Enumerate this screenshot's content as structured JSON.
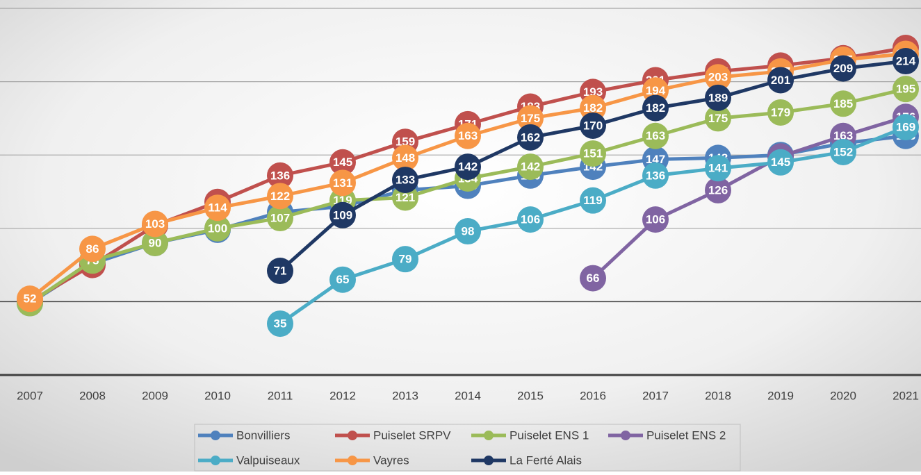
{
  "chart_data": {
    "type": "line",
    "categories": [
      "2007",
      "2008",
      "2009",
      "2010",
      "2011",
      "2012",
      "2013",
      "2014",
      "2015",
      "2016",
      "2017",
      "2018",
      "2019",
      "2020",
      "2021"
    ],
    "series": [
      {
        "name": "Bonvilliers",
        "color": "#4f81bd",
        "values": [
          49,
          76,
          90,
          99,
          111,
          115,
          126,
          129,
          136,
          142,
          147,
          148,
          150,
          158,
          163
        ]
      },
      {
        "name": "Puiselet SRPV",
        "color": "#c0504d",
        "values": [
          50,
          75,
          102,
          118,
          136,
          145,
          159,
          171,
          183,
          193,
          201,
          207,
          211,
          216,
          223
        ]
      },
      {
        "name": "Puiselet ENS 1",
        "color": "#9bbb59",
        "values": [
          49,
          78,
          90,
          100,
          107,
          119,
          121,
          134,
          142,
          151,
          163,
          175,
          179,
          185,
          195
        ]
      },
      {
        "name": "Puiselet ENS 2",
        "color": "#8064a2",
        "values": [
          null,
          null,
          null,
          null,
          null,
          null,
          null,
          null,
          null,
          66,
          106,
          126,
          149,
          163,
          176
        ]
      },
      {
        "name": "Valpuiseaux",
        "color": "#4bacc6",
        "values": [
          null,
          null,
          null,
          null,
          35,
          65,
          79,
          98,
          106,
          119,
          136,
          141,
          145,
          152,
          169
        ]
      },
      {
        "name": "Vayres",
        "color": "#f79646",
        "values": [
          52,
          86,
          103,
          114,
          122,
          131,
          148,
          163,
          175,
          182,
          194,
          203,
          207,
          215,
          219
        ]
      },
      {
        "name": "La Ferté Alais",
        "color": "#1f3864",
        "values": [
          null,
          null,
          null,
          null,
          71,
          109,
          133,
          142,
          162,
          170,
          182,
          189,
          201,
          209,
          214
        ]
      }
    ],
    "ylim": [
      0,
      250
    ],
    "yticks": [
      50,
      100,
      150,
      200,
      250
    ],
    "grid": true
  }
}
